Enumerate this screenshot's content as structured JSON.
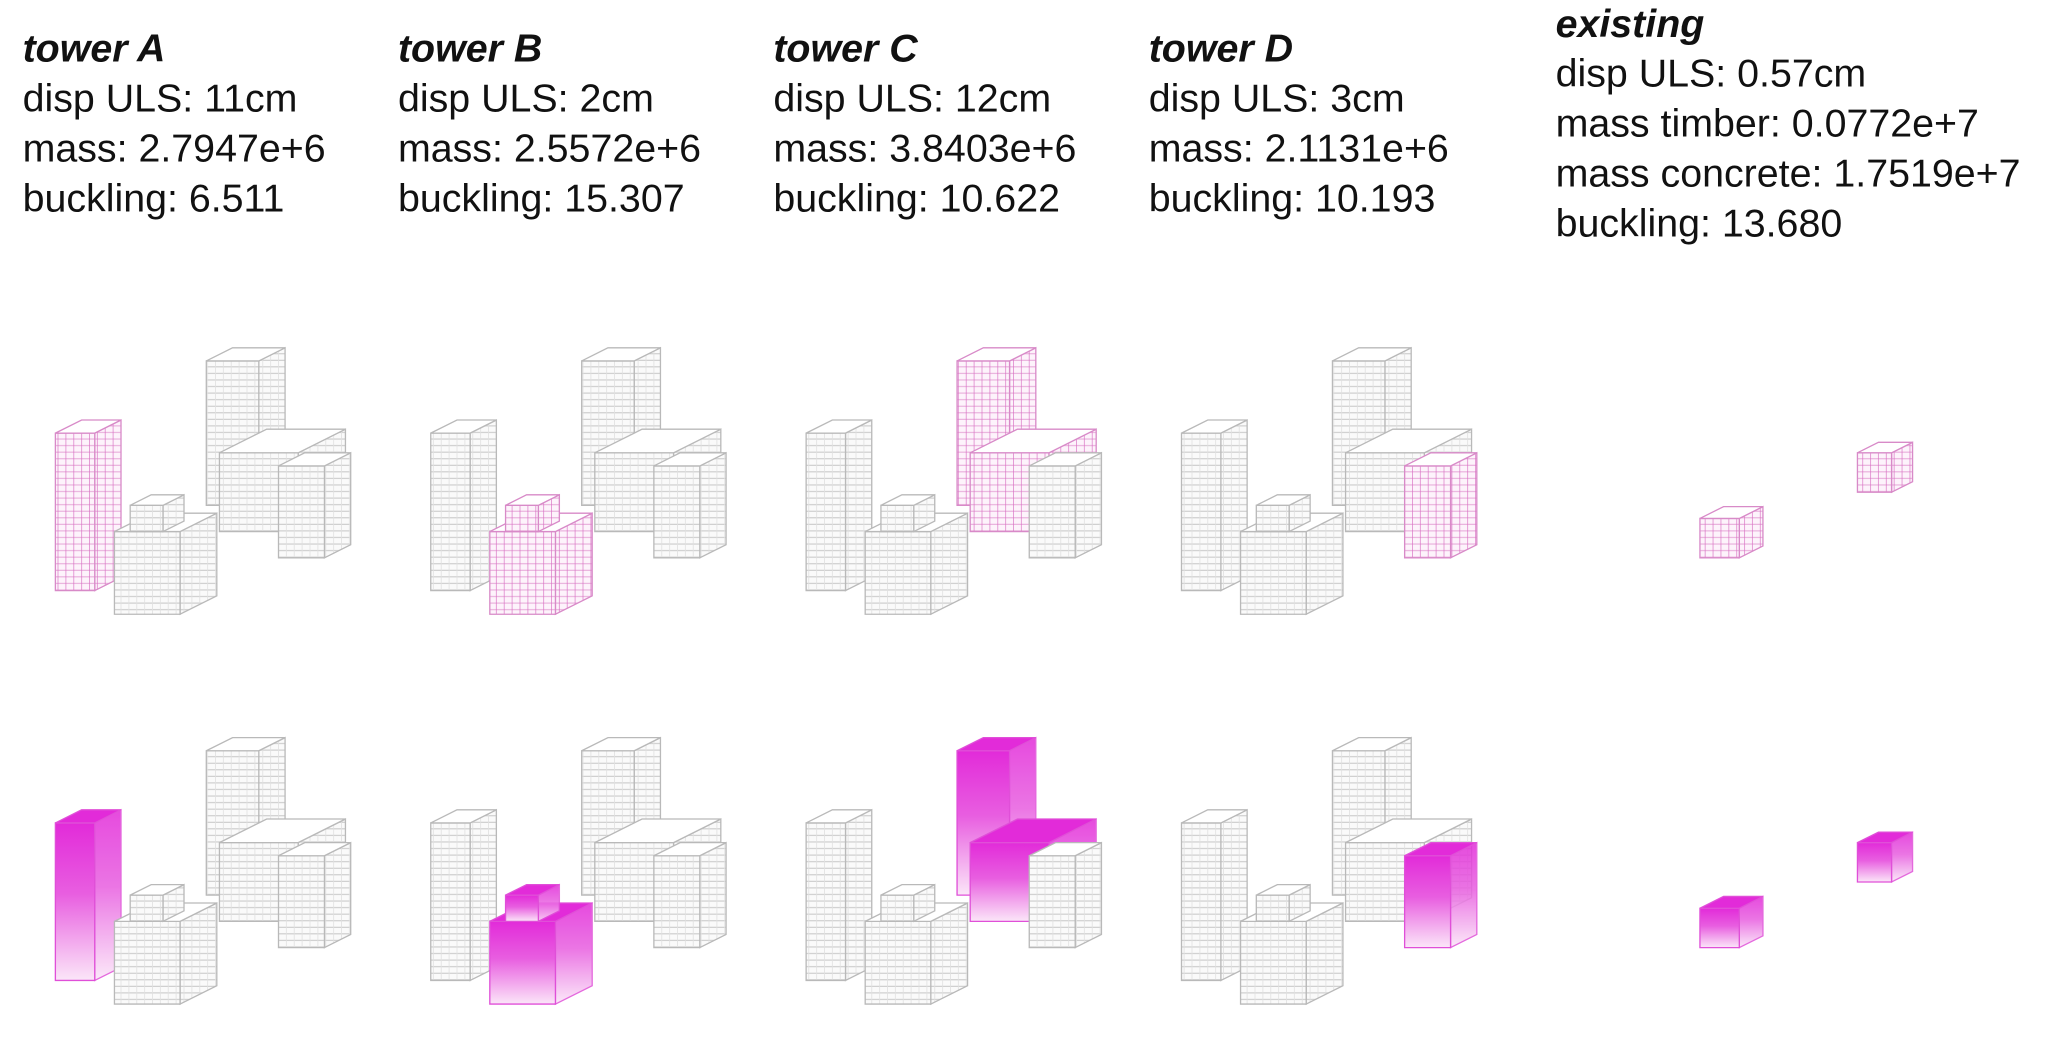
{
  "columns": [
    {
      "title": "tower A",
      "lines": [
        "disp ULS: 11cm",
        "mass: 2.7947e+6",
        "buckling: 6.511"
      ]
    },
    {
      "title": "tower B",
      "lines": [
        "disp ULS: 2cm",
        "mass: 2.5572e+6",
        "buckling: 15.307"
      ]
    },
    {
      "title": "tower C",
      "lines": [
        "disp ULS: 12cm",
        "mass: 3.8403e+6",
        "buckling: 10.622"
      ]
    },
    {
      "title": "tower D",
      "lines": [
        "disp ULS: 3cm",
        "mass: 2.1131e+6",
        "buckling: 10.193"
      ]
    },
    {
      "title": "existing",
      "lines": [
        "disp ULS: 0.57cm",
        "mass timber: 0.0772e+7",
        "mass concrete: 1.7519e+7",
        "buckling: 13.680"
      ]
    }
  ]
}
